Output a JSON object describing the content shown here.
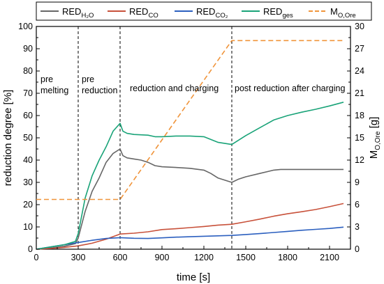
{
  "chart_data": {
    "type": "line",
    "xlabel": "time [s]",
    "ylabel_left": "reduction degree [%]",
    "ylabel_right_base": "M",
    "ylabel_right_sub": "O,Ore",
    "ylabel_right_unit": " [g]",
    "xlim": [
      0,
      2250
    ],
    "ylim_left": [
      0,
      100
    ],
    "ylim_right": [
      0,
      30
    ],
    "x_ticks": [
      "0",
      "300",
      "600",
      "900",
      "1200",
      "1500",
      "1800",
      "2100"
    ],
    "y_left_ticks": [
      "0",
      "10",
      "20",
      "30",
      "40",
      "50",
      "60",
      "70",
      "80",
      "90",
      "100"
    ],
    "y_right_ticks": [
      "0",
      "3",
      "6",
      "9",
      "12",
      "15",
      "18",
      "21",
      "24",
      "27",
      "30"
    ],
    "phase_lines_x": [
      300,
      600,
      1400
    ],
    "annotations": [
      {
        "lines": [
          "pre",
          "melting"
        ],
        "x": 30,
        "y": 75
      },
      {
        "lines": [
          "pre",
          "reduction"
        ],
        "x": 325,
        "y": 75
      },
      {
        "lines": [
          "reduction and charging"
        ],
        "x": 670,
        "y": 71
      },
      {
        "lines": [
          "post reduction after charging"
        ],
        "x": 1420,
        "y": 71
      }
    ],
    "legend": {
      "placement": "top",
      "entries": [
        {
          "base": "RED",
          "sub": "H₂O",
          "color": "#666666",
          "dash": false
        },
        {
          "base": "RED",
          "sub": "CO",
          "color": "#c8513a",
          "dash": false
        },
        {
          "base": "RED",
          "sub": "CO₂",
          "color": "#2b5fbf",
          "dash": false
        },
        {
          "base": "RED",
          "sub": "ges",
          "color": "#19a378",
          "dash": false
        },
        {
          "base": "M",
          "sub": "O,Ore",
          "color": "#f0943a",
          "dash": true
        }
      ]
    },
    "series": [
      {
        "name": "RED_H2O",
        "axis": "left",
        "color": "#666666",
        "x": [
          0,
          100,
          200,
          280,
          300,
          350,
          400,
          450,
          500,
          550,
          600,
          620,
          650,
          700,
          750,
          800,
          850,
          900,
          1000,
          1100,
          1200,
          1250,
          1300,
          1400,
          1450,
          1500,
          1600,
          1700,
          1750,
          1800,
          2000,
          2200
        ],
        "y": [
          0,
          0.5,
          1.3,
          2.5,
          5,
          17,
          26,
          32,
          39,
          43,
          45,
          42,
          41,
          40.5,
          40,
          39,
          37.5,
          37,
          36.7,
          36.3,
          35.5,
          34,
          32,
          30,
          31.5,
          32.5,
          34,
          35.5,
          35.8,
          35.8,
          35.8,
          35.8
        ]
      },
      {
        "name": "RED_CO",
        "axis": "left",
        "color": "#c8513a",
        "x": [
          0,
          100,
          200,
          300,
          400,
          500,
          600,
          700,
          800,
          900,
          1000,
          1100,
          1200,
          1300,
          1400,
          1500,
          1600,
          1700,
          1800,
          1900,
          2000,
          2100,
          2200
        ],
        "y": [
          0,
          0.3,
          0.8,
          1.5,
          2.7,
          4.5,
          6.8,
          7.2,
          7.8,
          8.8,
          9.2,
          9.7,
          10.2,
          10.8,
          11.2,
          12.3,
          13.5,
          14.8,
          15.9,
          16.8,
          17.8,
          19.1,
          20.5
        ]
      },
      {
        "name": "RED_CO2",
        "axis": "left",
        "color": "#2b5fbf",
        "x": [
          0,
          100,
          200,
          300,
          400,
          500,
          600,
          700,
          800,
          900,
          1000,
          1100,
          1200,
          1300,
          1400,
          1500,
          1600,
          1700,
          1800,
          1900,
          2000,
          2100,
          2200
        ],
        "y": [
          0,
          1,
          2,
          3,
          4,
          4.8,
          5.2,
          4.9,
          4.8,
          5.1,
          5.4,
          5.6,
          5.8,
          6.0,
          6.2,
          6.6,
          7.0,
          7.5,
          8.0,
          8.5,
          8.9,
          9.3,
          9.9
        ]
      },
      {
        "name": "RED_ges",
        "axis": "left",
        "color": "#19a378",
        "x": [
          0,
          100,
          200,
          280,
          300,
          350,
          400,
          450,
          500,
          550,
          600,
          620,
          650,
          700,
          800,
          850,
          900,
          1000,
          1100,
          1200,
          1300,
          1400,
          1450,
          1500,
          1600,
          1700,
          1800,
          1900,
          2000,
          2100,
          2200
        ],
        "y": [
          0,
          1,
          2,
          3.5,
          7,
          23,
          33,
          40,
          46,
          53,
          56.5,
          53,
          52,
          51.5,
          51.2,
          50.5,
          50.5,
          50.8,
          50.8,
          50.5,
          48,
          47,
          49,
          51,
          54.5,
          58,
          60,
          61.5,
          62.8,
          64.3,
          66
        ]
      },
      {
        "name": "M_O,Ore",
        "axis": "right",
        "color": "#f0943a",
        "dash": true,
        "x": [
          0,
          600,
          1400,
          2200
        ],
        "y": [
          6.7,
          6.7,
          28.1,
          28.1
        ]
      }
    ]
  }
}
